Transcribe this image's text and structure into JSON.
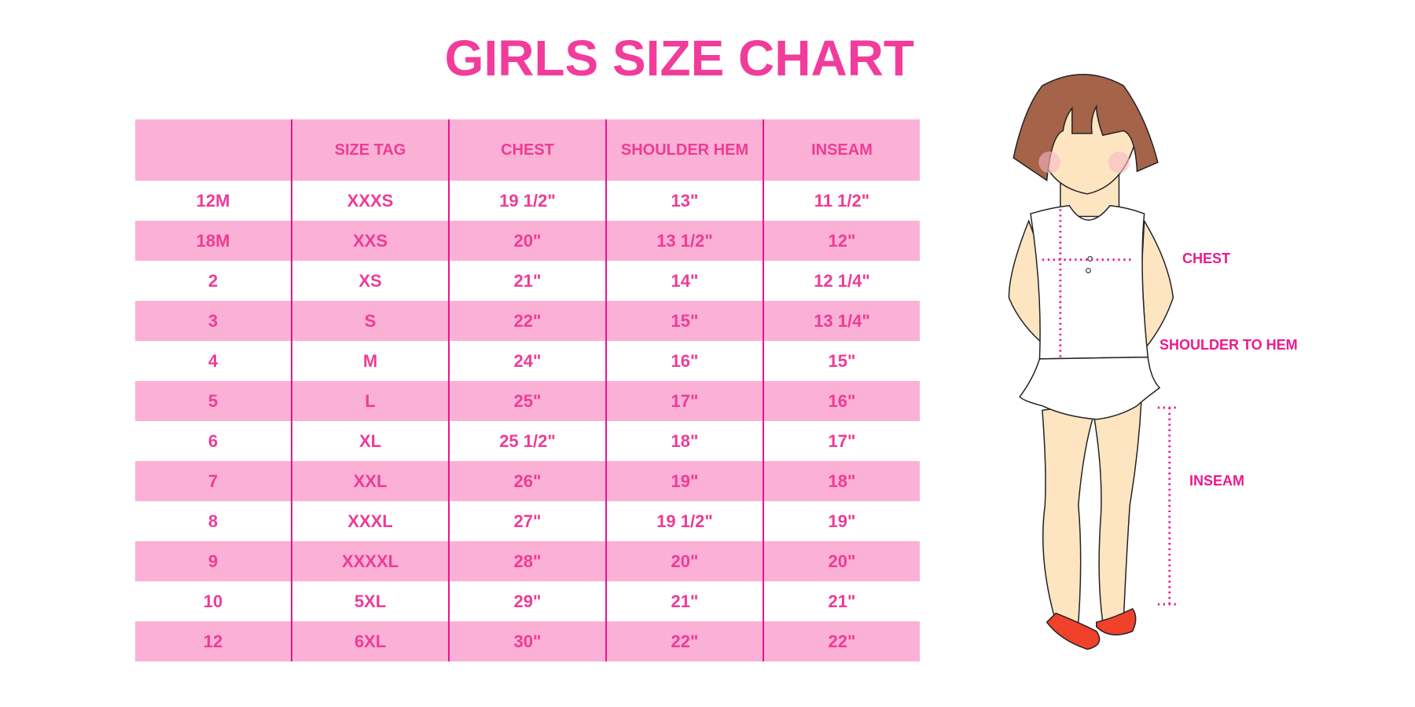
{
  "title": "GIRLS SIZE CHART",
  "table": {
    "headers": [
      "",
      "SIZE TAG",
      "CHEST",
      "SHOULDER HEM",
      "INSEAM"
    ],
    "rows": [
      [
        "12M",
        "XXXS",
        "19 1/2\"",
        "13\"",
        "11 1/2\""
      ],
      [
        "18M",
        "XXS",
        "20\"",
        "13 1/2\"",
        "12\""
      ],
      [
        "2",
        "XS",
        "21\"",
        "14\"",
        "12 1/4\""
      ],
      [
        "3",
        "S",
        "22\"",
        "15\"",
        "13 1/4\""
      ],
      [
        "4",
        "M",
        "24\"",
        "16\"",
        "15\""
      ],
      [
        "5",
        "L",
        "25\"",
        "17\"",
        "16\""
      ],
      [
        "6",
        "XL",
        "25 1/2\"",
        "18\"",
        "17\""
      ],
      [
        "7",
        "XXL",
        "26\"",
        "19\"",
        "18\""
      ],
      [
        "8",
        "XXXL",
        "27\"",
        "19 1/2\"",
        "19\""
      ],
      [
        "9",
        "XXXXL",
        "28\"",
        "20\"",
        "20\""
      ],
      [
        "10",
        "5XL",
        "29\"",
        "21\"",
        "21\""
      ],
      [
        "12",
        "6XL",
        "30\"",
        "22\"",
        "22\""
      ]
    ]
  },
  "figure_labels": {
    "chest": "CHEST",
    "shoulder_to_hem": "SHOULDER TO HEM",
    "inseam": "INSEAM"
  },
  "colors": {
    "accent": "#f23c9b",
    "stripe": "#fbb1d5",
    "divider": "#e8158f"
  }
}
